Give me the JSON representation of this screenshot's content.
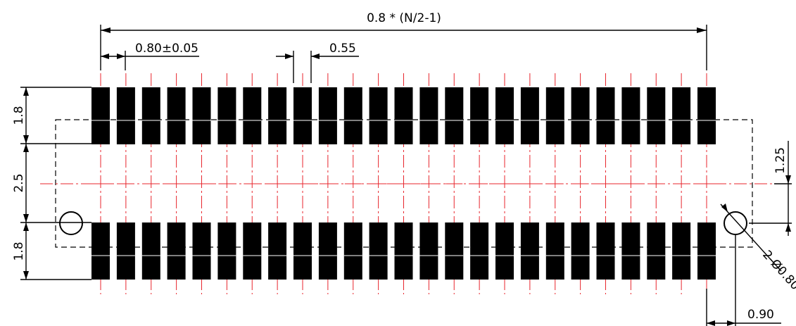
{
  "pad_count_per_row": 25,
  "colors": {
    "pad": "#000000",
    "center_line": "#e8262d",
    "dimension": "#000000"
  },
  "dimensions": {
    "overall": "0.8 * (N/2-1)",
    "pitch": "0.80±0.05",
    "pad_width": "0.55",
    "pad_length_top": "1.8",
    "row_gap": "2.5",
    "pad_length_bottom": "1.8",
    "hole_offset_y": "1.25",
    "holes": "2-Ø0.80",
    "hole_offset_x": "0.90"
  }
}
